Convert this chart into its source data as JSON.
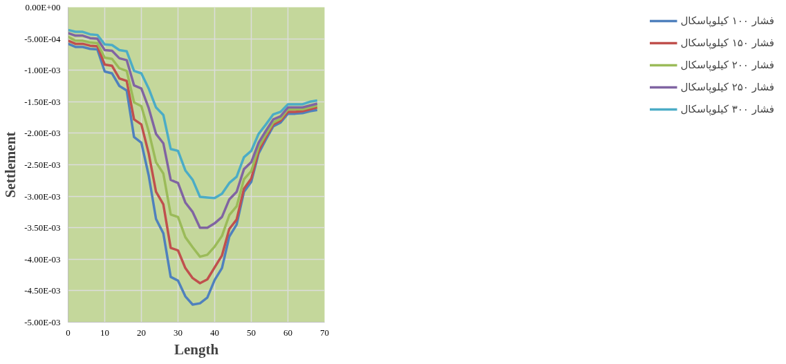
{
  "chart_data": {
    "type": "line",
    "xlabel": "Length",
    "ylabel": "Settlement",
    "x": [
      0,
      2,
      4,
      6,
      8,
      10,
      12,
      14,
      16,
      18,
      20,
      22,
      24,
      26,
      28,
      30,
      32,
      34,
      36,
      38,
      40,
      42,
      44,
      46,
      48,
      50,
      52,
      54,
      56,
      58,
      60,
      62,
      64,
      66,
      68
    ],
    "xlim": [
      0,
      70
    ],
    "xticks": [
      0,
      10,
      20,
      30,
      40,
      50,
      60,
      70
    ],
    "ylim": [
      -0.005,
      0
    ],
    "yticks": [
      {
        "value": 0,
        "label": "0.00E+00"
      },
      {
        "value": -0.0005,
        "label": "-5.00E-04"
      },
      {
        "value": -0.001,
        "label": "-1.00E-03"
      },
      {
        "value": -0.0015,
        "label": "-1.50E-03"
      },
      {
        "value": -0.002,
        "label": "-2.00E-03"
      },
      {
        "value": -0.0025,
        "label": "-2.50E-03"
      },
      {
        "value": -0.003,
        "label": "-3.00E-03"
      },
      {
        "value": -0.0035,
        "label": "-3.50E-03"
      },
      {
        "value": -0.004,
        "label": "-4.00E-03"
      },
      {
        "value": -0.0045,
        "label": "-4.50E-03"
      },
      {
        "value": -0.005,
        "label": "-5.00E-03"
      }
    ],
    "grid": true,
    "legend": "right",
    "marker": "none",
    "line_style": "solid",
    "series": [
      {
        "name": "فشار ۱۰۰ کیلوپاسکال",
        "color": "#4f81bd",
        "values": [
          -0.00058,
          -0.00063,
          -0.00063,
          -0.00066,
          -0.00067,
          -0.00102,
          -0.00105,
          -0.00125,
          -0.00132,
          -0.00206,
          -0.00215,
          -0.00267,
          -0.00336,
          -0.00359,
          -0.00428,
          -0.00434,
          -0.00459,
          -0.00472,
          -0.0047,
          -0.00461,
          -0.00433,
          -0.00414,
          -0.00364,
          -0.00345,
          -0.00293,
          -0.00277,
          -0.00232,
          -0.0021,
          -0.00189,
          -0.00183,
          -0.00169,
          -0.00169,
          -0.00168,
          -0.00165,
          -0.00163
        ]
      },
      {
        "name": "فشار ۱۵۰ کیلوپاسکال",
        "color": "#c0504d",
        "values": [
          -0.00053,
          -0.00058,
          -0.00058,
          -0.00061,
          -0.00062,
          -0.00091,
          -0.00093,
          -0.00113,
          -0.00117,
          -0.00178,
          -0.00186,
          -0.00232,
          -0.00293,
          -0.00313,
          -0.00382,
          -0.00386,
          -0.00414,
          -0.0043,
          -0.00438,
          -0.00432,
          -0.00413,
          -0.00394,
          -0.00352,
          -0.00337,
          -0.00288,
          -0.00272,
          -0.00228,
          -0.00206,
          -0.00186,
          -0.0018,
          -0.00166,
          -0.00166,
          -0.00165,
          -0.00162,
          -0.00159
        ]
      },
      {
        "name": "فشار ۲۰۰ کیلوپاسکال",
        "color": "#9bbb59",
        "values": [
          -0.00047,
          -0.00053,
          -0.00053,
          -0.00056,
          -0.00057,
          -0.0008,
          -0.00082,
          -0.00097,
          -0.00101,
          -0.00151,
          -0.00157,
          -0.00197,
          -0.00246,
          -0.00264,
          -0.00329,
          -0.00333,
          -0.00365,
          -0.00381,
          -0.00396,
          -0.00393,
          -0.0038,
          -0.00363,
          -0.0033,
          -0.00316,
          -0.00273,
          -0.0026,
          -0.00222,
          -0.00202,
          -0.00183,
          -0.00177,
          -0.00162,
          -0.00162,
          -0.00162,
          -0.00159,
          -0.00156
        ]
      },
      {
        "name": "فشار ۲۵۰ کیلوپاسکال",
        "color": "#8064a2",
        "values": [
          -0.00041,
          -0.00045,
          -0.00045,
          -0.00049,
          -0.0005,
          -0.00068,
          -0.00069,
          -0.00081,
          -0.00084,
          -0.00124,
          -0.00129,
          -0.0016,
          -0.00201,
          -0.00216,
          -0.00274,
          -0.00279,
          -0.0031,
          -0.00325,
          -0.0035,
          -0.0035,
          -0.00343,
          -0.00333,
          -0.00305,
          -0.00293,
          -0.00257,
          -0.00246,
          -0.00215,
          -0.00196,
          -0.00178,
          -0.00173,
          -0.00159,
          -0.00159,
          -0.00159,
          -0.00156,
          -0.00153
        ]
      },
      {
        "name": "فشار ۳۰۰ کیلوپاسکال",
        "color": "#4bacc6",
        "values": [
          -0.00036,
          -0.00039,
          -0.00039,
          -0.00043,
          -0.00044,
          -0.00059,
          -0.0006,
          -0.00068,
          -0.0007,
          -0.00101,
          -0.00105,
          -0.00129,
          -0.00159,
          -0.00171,
          -0.00225,
          -0.00228,
          -0.00259,
          -0.00274,
          -0.00301,
          -0.00302,
          -0.00303,
          -0.00296,
          -0.00279,
          -0.00269,
          -0.00238,
          -0.00228,
          -0.00201,
          -0.00186,
          -0.0017,
          -0.00166,
          -0.00154,
          -0.00154,
          -0.00154,
          -0.0015,
          -0.00148
        ]
      }
    ]
  }
}
